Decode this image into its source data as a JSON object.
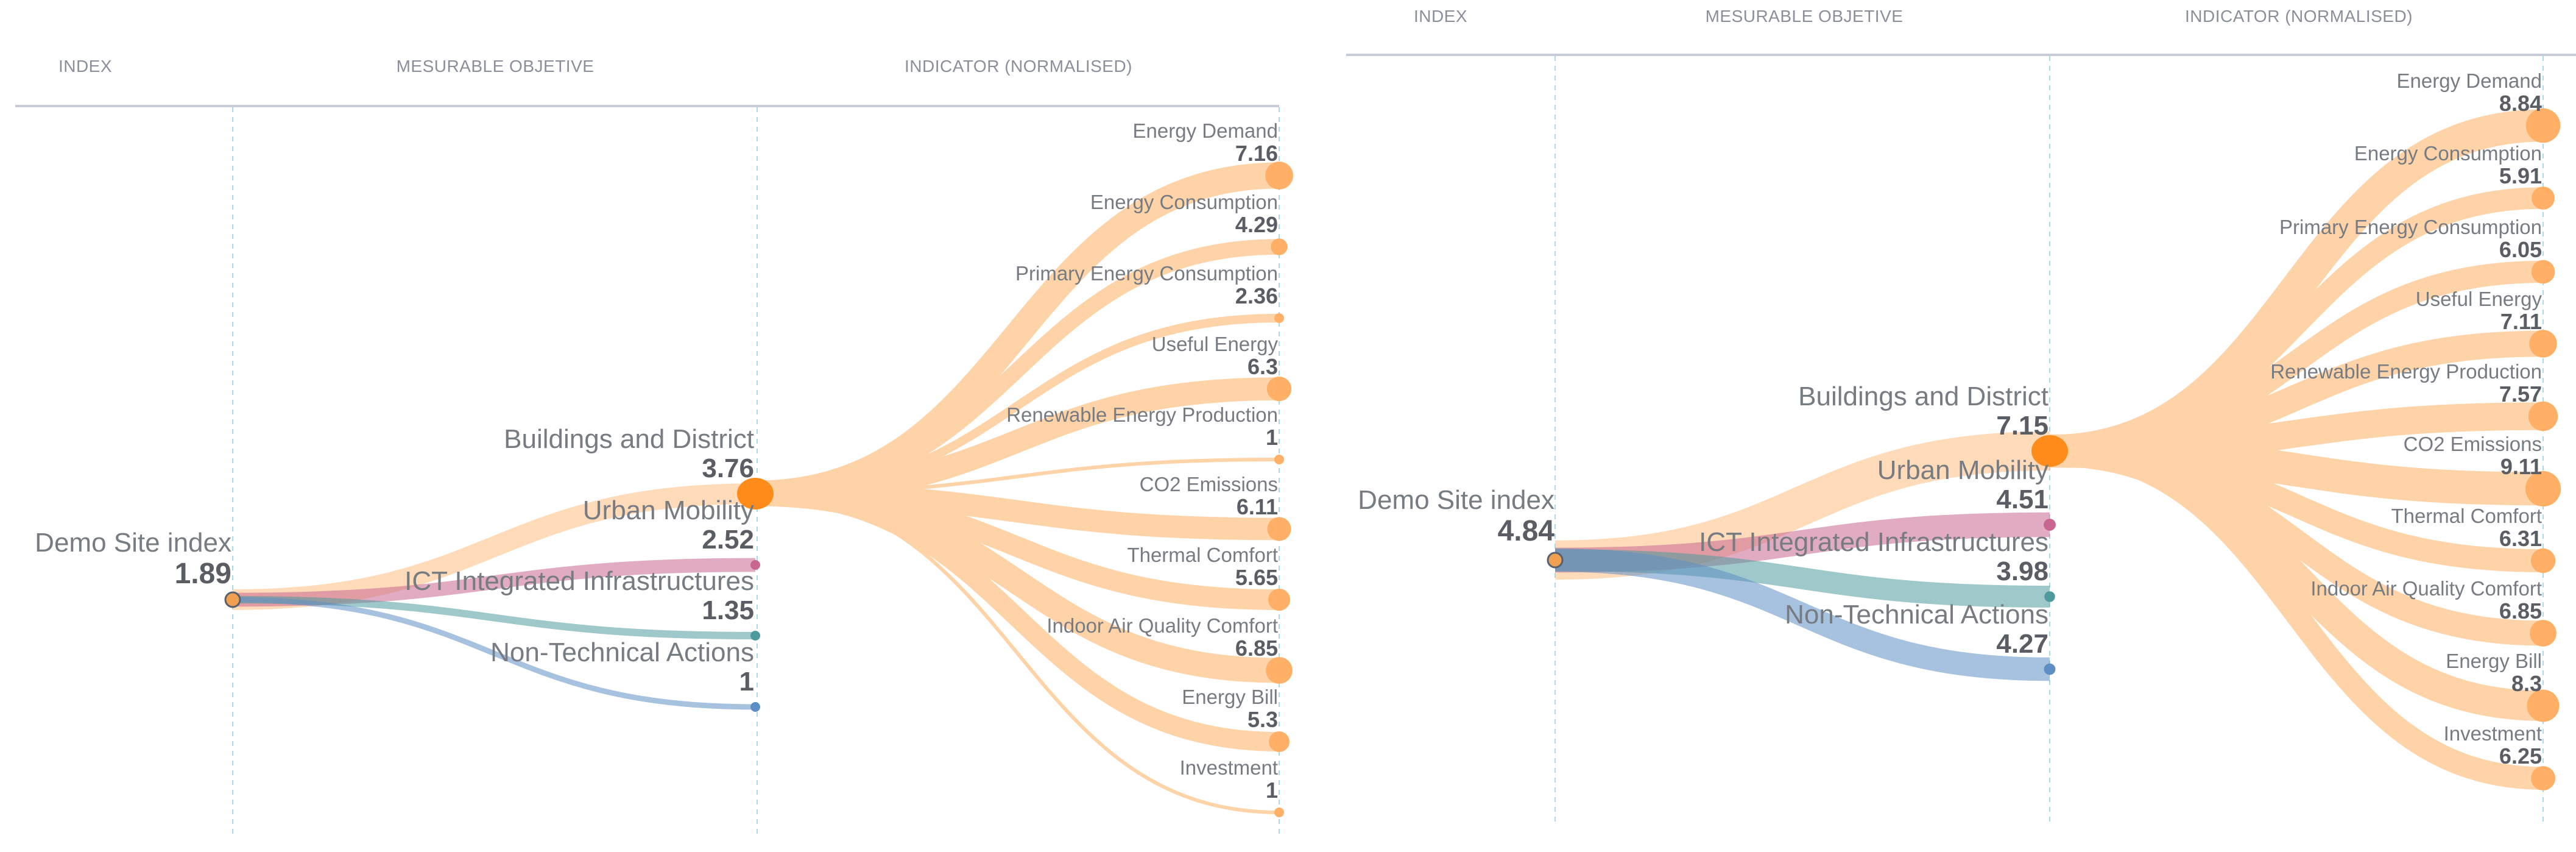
{
  "chart_data": [
    {
      "type": "tree",
      "columns": [
        "INDEX",
        "MESURABLE OBJETIVE",
        "INDICATOR (NORMALISED)"
      ],
      "root": {
        "label": "Demo Site index",
        "value": "1.89"
      },
      "objectives": [
        {
          "label": "Buildings and District",
          "value": "3.76",
          "color": "#ffbd80"
        },
        {
          "label": "Urban Mobility",
          "value": "2.52",
          "color": "#c9668f"
        },
        {
          "label": "ICT Integrated Infrastructures",
          "value": "1.35",
          "color": "#4e9a9c"
        },
        {
          "label": "Non-Technical Actions",
          "value": "1",
          "color": "#5d8fc4"
        }
      ],
      "indicators": [
        {
          "label": "Energy Demand",
          "value": "7.16"
        },
        {
          "label": "Energy Consumption",
          "value": "4.29"
        },
        {
          "label": "Primary Energy Consumption",
          "value": "2.36"
        },
        {
          "label": "Useful Energy",
          "value": "6.3"
        },
        {
          "label": "Renewable Energy Production",
          "value": "1"
        },
        {
          "label": "CO2 Emissions",
          "value": "6.11"
        },
        {
          "label": "Thermal Comfort",
          "value": "5.65"
        },
        {
          "label": "Indoor Air Quality Comfort",
          "value": "6.85"
        },
        {
          "label": "Energy Bill",
          "value": "5.3"
        },
        {
          "label": "Investment",
          "value": "1"
        }
      ]
    },
    {
      "type": "tree",
      "columns": [
        "INDEX",
        "MESURABLE OBJETIVE",
        "INDICATOR (NORMALISED)"
      ],
      "root": {
        "label": "Demo Site index",
        "value": "4.84"
      },
      "objectives": [
        {
          "label": "Buildings and District",
          "value": "7.15",
          "color": "#ffbd80"
        },
        {
          "label": "Urban Mobility",
          "value": "4.51",
          "color": "#c9668f"
        },
        {
          "label": "ICT Integrated Infrastructures",
          "value": "3.98",
          "color": "#4e9a9c"
        },
        {
          "label": "Non-Technical Actions",
          "value": "4.27",
          "color": "#5d8fc4"
        }
      ],
      "indicators": [
        {
          "label": "Energy Demand",
          "value": "8.84"
        },
        {
          "label": "Energy Consumption",
          "value": "5.91"
        },
        {
          "label": "Primary Energy Consumption",
          "value": "6.05"
        },
        {
          "label": "Useful Energy",
          "value": "7.11"
        },
        {
          "label": "Renewable Energy Production",
          "value": "7.57"
        },
        {
          "label": "CO2 Emissions",
          "value": "9.11"
        },
        {
          "label": "Thermal Comfort",
          "value": "6.31"
        },
        {
          "label": "Indoor Air Quality Comfort",
          "value": "6.85"
        },
        {
          "label": "Energy Bill",
          "value": "8.3"
        },
        {
          "label": "Investment",
          "value": "6.25"
        }
      ]
    }
  ],
  "colors": {
    "indicator_link": "#ffcc99",
    "indicator_node": "#ffb066",
    "hub": "#ff8c1a",
    "root_node": "#f0a050",
    "header_line": "#c8cbd8",
    "guide_line": "#a6dde8"
  }
}
